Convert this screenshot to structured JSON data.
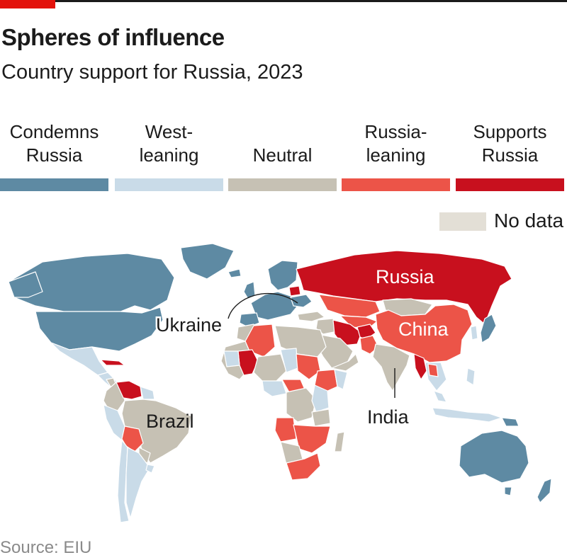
{
  "header": {
    "title": "Spheres of influence",
    "subtitle": "Country support for Russia, 2023"
  },
  "legend": {
    "items": [
      {
        "line1": "Condemns",
        "line2": "Russia",
        "color": "#5e8aa3"
      },
      {
        "line1": "West-",
        "line2": "leaning",
        "color": "#c9dbe8"
      },
      {
        "line1": "Neutral",
        "line2": "",
        "color": "#c6c1b4"
      },
      {
        "line1": "Russia-",
        "line2": "leaning",
        "color": "#ec5448"
      },
      {
        "line1": "Supports",
        "line2": "Russia",
        "color": "#c8101e"
      }
    ],
    "no_data": {
      "label": "No data",
      "color": "#e3dfd6"
    }
  },
  "map": {
    "labels": {
      "russia": "Russia",
      "china": "China",
      "ukraine": "Ukraine",
      "brazil": "Brazil",
      "india": "India"
    }
  },
  "footer": {
    "source": "Source: EIU"
  }
}
